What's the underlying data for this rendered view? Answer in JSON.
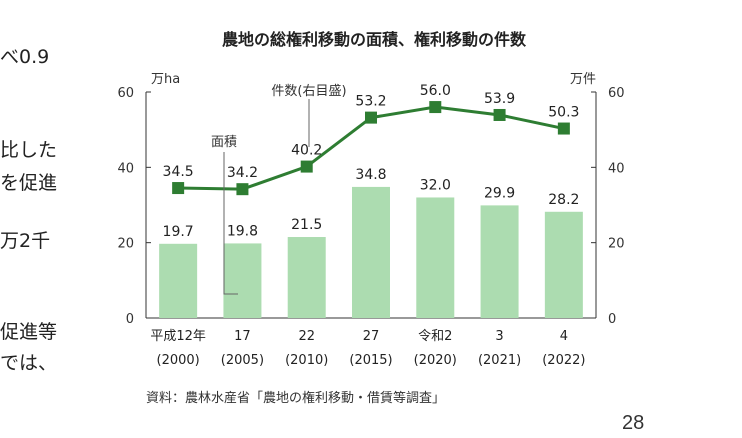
{
  "side_text": [
    "べ0.9",
    "比した",
    "を促進",
    "万2千",
    "促進等",
    "では、"
  ],
  "slide_number": "28",
  "colors": {
    "bar": "#acdcb0",
    "line": "#2e7d32",
    "text": "#222222",
    "axis": "#333333"
  },
  "chart_data": {
    "type": "bar+line",
    "title": "農地の総権利移動の面積、権利移動の件数",
    "left_unit": "万ha",
    "right_unit": "万件",
    "categories": [
      "平成12年",
      "17",
      "22",
      "27",
      "令和2",
      "3",
      "4"
    ],
    "categories_sub": [
      "(2000)",
      "(2005)",
      "(2010)",
      "(2015)",
      "(2020)",
      "(2021)",
      "(2022)"
    ],
    "ylim": [
      0,
      60
    ],
    "yticks": [
      0,
      20,
      40,
      60
    ],
    "y2lim": [
      0,
      60
    ],
    "y2ticks": [
      0,
      20,
      40,
      60
    ],
    "series": [
      {
        "name": "面積",
        "kind": "bar",
        "axis": "left",
        "values": [
          19.7,
          19.8,
          21.5,
          34.8,
          32.0,
          29.9,
          28.2
        ],
        "labels": [
          "19.7",
          "19.8",
          "21.5",
          "34.8",
          "32.0",
          "29.9",
          "28.2"
        ]
      },
      {
        "name": "件数(右目盛)",
        "kind": "line",
        "axis": "right",
        "values": [
          34.5,
          34.2,
          40.2,
          53.2,
          56.0,
          53.9,
          50.3
        ],
        "labels": [
          "34.5",
          "34.2",
          "40.2",
          "53.2",
          "56.0",
          "53.9",
          "50.3"
        ]
      }
    ],
    "grid": false,
    "source": "資料：農林水産省「農地の権利移動・借賃等調査」"
  }
}
